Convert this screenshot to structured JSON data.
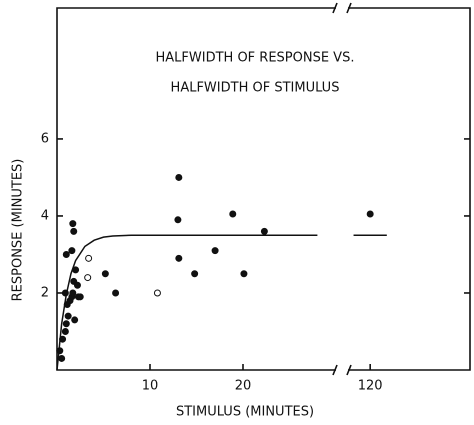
{
  "chart_data": {
    "type": "scatter",
    "title": [
      "HALFWIDTH OF RESPONSE VS.",
      "HALFWIDTH OF STIMULUS"
    ],
    "x_label": "STIMULUS (MINUTES)",
    "y_label": "RESPONSE (MINUTES)",
    "xlim": [
      0,
      138
    ],
    "xbreak": [
      30,
      116
    ],
    "ylim": [
      0,
      9.4
    ],
    "xticks": [
      10,
      20,
      120
    ],
    "yticks": [
      2,
      4,
      6
    ],
    "series": [
      {
        "marker": "filled",
        "color": "#111",
        "x": [
          0.5,
          0.3,
          0.6,
          0.9,
          1.0,
          1.1,
          0.9,
          1.0,
          1.2,
          1.4,
          1.6,
          1.7,
          1.8,
          1.6,
          1.8,
          1.7,
          2.0,
          1.9,
          2.3,
          2.5,
          2.2,
          5.2,
          6.3,
          13.1,
          13.0,
          13.1,
          14.8,
          17.0,
          18.9,
          20.1,
          22.3,
          120
        ],
        "values": [
          0.3,
          0.5,
          0.8,
          1.0,
          1.2,
          1.7,
          2.0,
          3.0,
          1.4,
          1.8,
          1.9,
          2.0,
          2.3,
          3.1,
          3.6,
          3.8,
          2.6,
          1.3,
          1.9,
          1.9,
          2.2,
          2.5,
          2.0,
          5.0,
          3.9,
          2.9,
          2.5,
          3.1,
          4.05,
          2.5,
          3.6,
          4.05
        ]
      },
      {
        "marker": "open",
        "color": "#111",
        "x": [
          3.4,
          3.3,
          10.8
        ],
        "values": [
          2.9,
          2.4,
          2.0
        ]
      },
      {
        "marker": "line",
        "color": "#111",
        "x": [
          0,
          0.5,
          1,
          1.5,
          2,
          3,
          4,
          5,
          6,
          8,
          28,
          117,
          123
        ],
        "values": [
          0,
          1.2,
          1.96,
          2.5,
          2.84,
          3.21,
          3.37,
          3.45,
          3.48,
          3.5,
          3.5,
          3.5,
          3.5
        ]
      }
    ]
  }
}
